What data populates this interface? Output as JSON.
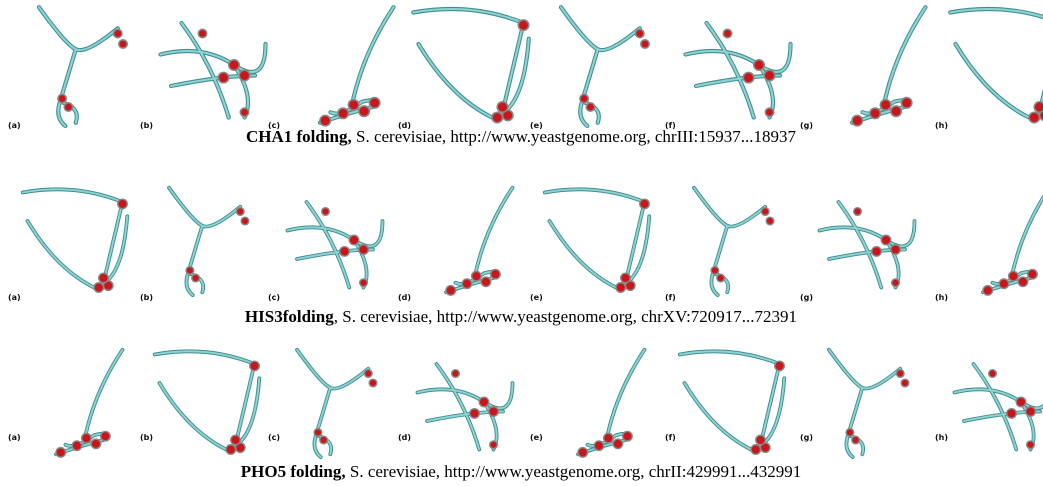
{
  "rows": [
    {
      "panels": [
        "(a)",
        "(b)",
        "(c)",
        "(d)",
        "(e)",
        "(f)",
        "(g)",
        "(h)"
      ],
      "caption": {
        "bold": "CHA1 folding,",
        "rest": " S. cerevisiae, http://www.yeastgenome.org, chrIII:15937...18937"
      }
    },
    {
      "panels": [
        "(a)",
        "(b)",
        "(c)",
        "(d)",
        "(e)",
        "(f)",
        "(g)",
        "(h)"
      ],
      "caption": {
        "bold": "HIS3folding",
        "rest": ", S. cerevisiae, http://www.yeastgenome.org, chrXV:720917...72391"
      }
    },
    {
      "panels": [
        "(a)",
        "(b)",
        "(c)",
        "(d)",
        "(e)",
        "(f)",
        "(g)",
        "(h)"
      ],
      "caption": {
        "bold": "PHO5 folding,",
        "rest": " S. cerevisiae, http://www.yeastgenome.org, chrII:429991...432991"
      }
    }
  ]
}
